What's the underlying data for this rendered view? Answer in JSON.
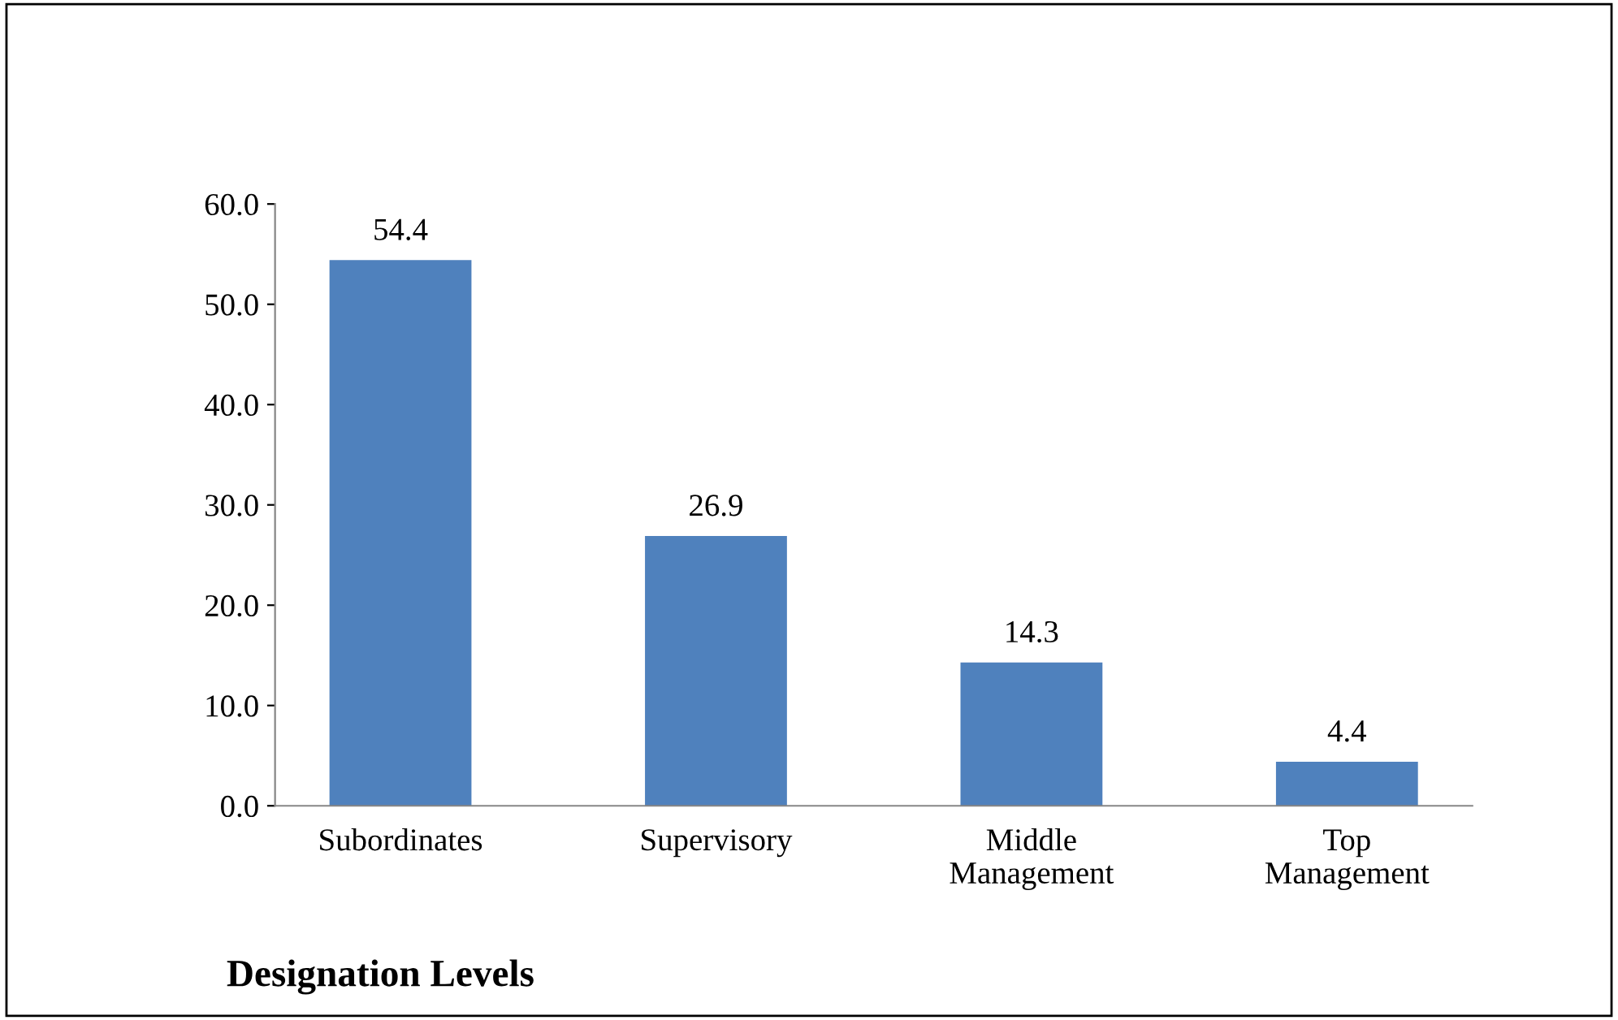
{
  "chart_data": {
    "type": "bar",
    "xlabel": "Designation Levels",
    "categories": [
      "Subordinates",
      "Supervisory",
      "Middle\nManagement",
      "Top\nManagement"
    ],
    "values": [
      54.4,
      26.9,
      14.3,
      4.4
    ],
    "color": "#4f81bd",
    "ylim": [
      0,
      60
    ],
    "yticks": [
      {
        "value": 0,
        "label": "0.0"
      },
      {
        "value": 10,
        "label": "10.0"
      },
      {
        "value": 20,
        "label": "20.0"
      },
      {
        "value": 30,
        "label": "30.0"
      },
      {
        "value": 40,
        "label": "40.0"
      },
      {
        "value": 50,
        "label": "50.0"
      },
      {
        "value": 60,
        "label": "60.0"
      }
    ],
    "data_labels": true,
    "grid": false,
    "legend": false
  }
}
